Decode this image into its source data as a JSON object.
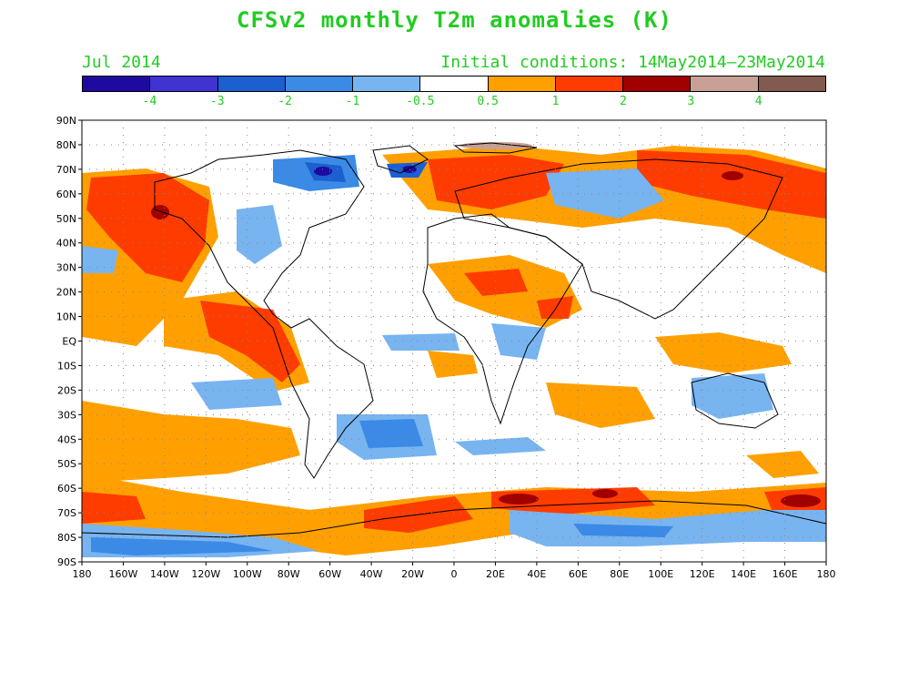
{
  "title": "CFSv2 monthly T2m anomalies (K)",
  "month": "Jul 2014",
  "initial_conditions": "Initial conditions: 14May2014–23May2014",
  "colorbar": {
    "colors": [
      "#1e0aa0",
      "#4132d2",
      "#1b5fd0",
      "#3a8ae6",
      "#78b4f0",
      "#ffffff",
      "#ffa000",
      "#ff3c00",
      "#a00000",
      "#c8a096",
      "#825a50"
    ],
    "labels": [
      "-4",
      "-3",
      "-2",
      "-1",
      "-0.5",
      "0.5",
      "1",
      "2",
      "3",
      "4"
    ]
  },
  "map": {
    "lat_ticks": [
      "90N",
      "80N",
      "70N",
      "60N",
      "50N",
      "40N",
      "30N",
      "20N",
      "10N",
      "EQ",
      "10S",
      "20S",
      "30S",
      "40S",
      "50S",
      "60S",
      "70S",
      "80S",
      "90S"
    ],
    "lon_ticks": [
      "180",
      "160W",
      "140W",
      "120W",
      "100W",
      "80W",
      "60W",
      "40W",
      "20W",
      "0",
      "20E",
      "40E",
      "60E",
      "80E",
      "100E",
      "120E",
      "140E",
      "160E",
      "180"
    ]
  }
}
